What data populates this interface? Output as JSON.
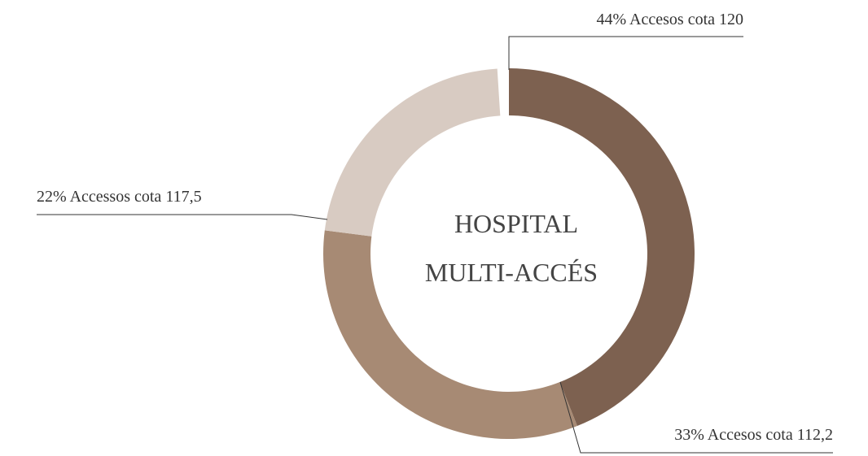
{
  "chart_data": {
    "type": "donut",
    "center_text": [
      "HOSPITAL",
      "MULTI-ACCÉS"
    ],
    "categories": [
      "Accesos cota 120",
      "Accesos cota 112,2",
      "Accessos cota 117,5"
    ],
    "values": [
      44,
      33,
      22
    ],
    "value_labels": [
      "44%",
      "33%",
      "22%"
    ],
    "colors": [
      "#7d6150",
      "#a78a74",
      "#d8cbc2"
    ]
  }
}
